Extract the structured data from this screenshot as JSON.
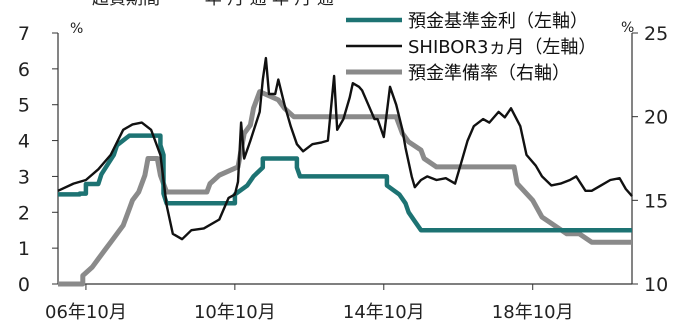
{
  "title_fragment": "超資期間  ⋯⋯ 年 月  通   年 月  通",
  "chart_data": {
    "type": "line",
    "x_ticks": [
      "06年10月",
      "10年10月",
      "14年10月",
      "18年10月"
    ],
    "left_unit": "%",
    "right_unit": "%",
    "left_axis": {
      "ticks": [
        "0",
        "1",
        "2",
        "3",
        "4",
        "5",
        "6",
        "7"
      ],
      "ylim": [
        0,
        7
      ]
    },
    "right_axis": {
      "ticks": [
        "10",
        "15",
        "20",
        "25"
      ],
      "ylim": [
        10,
        25
      ]
    },
    "grid": false,
    "legend_position": "top-right",
    "series": [
      {
        "name": "預金基準金利（左軸）",
        "axis": "left",
        "color": "#1d7373",
        "points": [
          [
            "2006-01",
            2.5
          ],
          [
            "2006-08",
            2.5
          ],
          [
            "2006-08",
            2.52
          ],
          [
            "2006-10",
            2.52
          ],
          [
            "2006-10",
            2.79
          ],
          [
            "2007-02",
            2.79
          ],
          [
            "2007-03",
            3.06
          ],
          [
            "2007-05",
            3.33
          ],
          [
            "2007-07",
            3.6
          ],
          [
            "2007-08",
            3.87
          ],
          [
            "2007-12",
            4.14
          ],
          [
            "2008-10",
            4.14
          ],
          [
            "2008-10",
            3.87
          ],
          [
            "2008-11",
            3.6
          ],
          [
            "2008-11",
            2.52
          ],
          [
            "2008-12",
            2.25
          ],
          [
            "2010-10",
            2.25
          ],
          [
            "2010-10",
            2.5
          ],
          [
            "2011-02",
            2.75
          ],
          [
            "2011-04",
            3.0
          ],
          [
            "2011-07",
            3.25
          ],
          [
            "2011-07",
            3.5
          ],
          [
            "2012-06",
            3.5
          ],
          [
            "2012-06",
            3.25
          ],
          [
            "2012-07",
            3.0
          ],
          [
            "2014-11",
            3.0
          ],
          [
            "2014-11",
            2.75
          ],
          [
            "2015-03",
            2.5
          ],
          [
            "2015-05",
            2.25
          ],
          [
            "2015-06",
            2.0
          ],
          [
            "2015-08",
            1.75
          ],
          [
            "2015-10",
            1.5
          ],
          [
            "2021-06",
            1.5
          ]
        ]
      },
      {
        "name": "SHIBOR3ヵ月（左軸）",
        "axis": "left",
        "color": "#111111",
        "points": [
          [
            "2006-01",
            2.6
          ],
          [
            "2006-06",
            2.8
          ],
          [
            "2006-10",
            2.9
          ],
          [
            "2007-02",
            3.2
          ],
          [
            "2007-06",
            3.6
          ],
          [
            "2007-10",
            4.3
          ],
          [
            "2008-01",
            4.45
          ],
          [
            "2008-04",
            4.5
          ],
          [
            "2008-07",
            4.3
          ],
          [
            "2008-10",
            3.6
          ],
          [
            "2008-12",
            2.2
          ],
          [
            "2009-02",
            1.4
          ],
          [
            "2009-05",
            1.25
          ],
          [
            "2009-08",
            1.5
          ],
          [
            "2009-12",
            1.55
          ],
          [
            "2010-05",
            1.8
          ],
          [
            "2010-08",
            2.4
          ],
          [
            "2010-10",
            2.5
          ],
          [
            "2010-11",
            2.85
          ],
          [
            "2010-12",
            4.5
          ],
          [
            "2011-01",
            3.5
          ],
          [
            "2011-03",
            4.0
          ],
          [
            "2011-06",
            4.8
          ],
          [
            "2011-07",
            5.7
          ],
          [
            "2011-08",
            6.3
          ],
          [
            "2011-09",
            5.3
          ],
          [
            "2011-11",
            5.3
          ],
          [
            "2011-12",
            5.7
          ],
          [
            "2012-02",
            5.0
          ],
          [
            "2012-04",
            4.4
          ],
          [
            "2012-06",
            3.9
          ],
          [
            "2012-08",
            3.7
          ],
          [
            "2012-11",
            3.9
          ],
          [
            "2013-02",
            3.95
          ],
          [
            "2013-04",
            4.0
          ],
          [
            "2013-06",
            5.8
          ],
          [
            "2013-07",
            4.3
          ],
          [
            "2013-09",
            4.6
          ],
          [
            "2013-11",
            5.2
          ],
          [
            "2013-12",
            5.6
          ],
          [
            "2014-02",
            5.5
          ],
          [
            "2014-03",
            5.4
          ],
          [
            "2014-05",
            5.0
          ],
          [
            "2014-07",
            4.6
          ],
          [
            "2014-08",
            4.6
          ],
          [
            "2014-10",
            4.1
          ],
          [
            "2014-12",
            5.5
          ],
          [
            "2015-02",
            5.0
          ],
          [
            "2015-04",
            4.3
          ],
          [
            "2015-05",
            3.8
          ],
          [
            "2015-07",
            3.0
          ],
          [
            "2015-08",
            2.7
          ],
          [
            "2015-10",
            2.9
          ],
          [
            "2015-12",
            3.0
          ],
          [
            "2016-03",
            2.9
          ],
          [
            "2016-06",
            2.95
          ],
          [
            "2016-09",
            2.8
          ],
          [
            "2016-11",
            3.4
          ],
          [
            "2017-01",
            4.0
          ],
          [
            "2017-03",
            4.4
          ],
          [
            "2017-06",
            4.6
          ],
          [
            "2017-08",
            4.5
          ],
          [
            "2017-11",
            4.8
          ],
          [
            "2018-01",
            4.65
          ],
          [
            "2018-03",
            4.9
          ],
          [
            "2018-06",
            4.4
          ],
          [
            "2018-08",
            3.6
          ],
          [
            "2018-11",
            3.3
          ],
          [
            "2019-01",
            3.0
          ],
          [
            "2019-04",
            2.75
          ],
          [
            "2019-07",
            2.8
          ],
          [
            "2019-10",
            2.9
          ],
          [
            "2019-12",
            3.0
          ],
          [
            "2020-03",
            2.6
          ],
          [
            "2020-05",
            2.6
          ],
          [
            "2020-08",
            2.75
          ],
          [
            "2020-11",
            2.9
          ],
          [
            "2021-02",
            2.95
          ],
          [
            "2021-04",
            2.65
          ],
          [
            "2021-06",
            2.45
          ]
        ]
      },
      {
        "name": "預金準備率（右軸）",
        "axis": "right",
        "color": "#8a8a8a",
        "points": [
          [
            "2006-01",
            10.0
          ],
          [
            "2006-09",
            10.0
          ],
          [
            "2006-09",
            10.5
          ],
          [
            "2006-12",
            11.0
          ],
          [
            "2007-02",
            11.5
          ],
          [
            "2007-04",
            12.0
          ],
          [
            "2007-06",
            12.5
          ],
          [
            "2007-08",
            13.0
          ],
          [
            "2007-10",
            13.5
          ],
          [
            "2007-12",
            14.5
          ],
          [
            "2008-01",
            15.0
          ],
          [
            "2008-03",
            15.5
          ],
          [
            "2008-05",
            16.5
          ],
          [
            "2008-06",
            17.5
          ],
          [
            "2008-09",
            17.5
          ],
          [
            "2008-10",
            16.5
          ],
          [
            "2008-12",
            15.5
          ],
          [
            "2010-01",
            15.5
          ],
          [
            "2010-02",
            16.0
          ],
          [
            "2010-05",
            16.5
          ],
          [
            "2010-11",
            17.0
          ],
          [
            "2010-12",
            18.0
          ],
          [
            "2011-01",
            19.0
          ],
          [
            "2011-03",
            19.5
          ],
          [
            "2011-04",
            20.5
          ],
          [
            "2011-06",
            21.5
          ],
          [
            "2011-12",
            21.0
          ],
          [
            "2012-02",
            20.5
          ],
          [
            "2012-05",
            20.0
          ],
          [
            "2015-02",
            20.0
          ],
          [
            "2015-04",
            19.0
          ],
          [
            "2015-06",
            18.5
          ],
          [
            "2015-10",
            18.0
          ],
          [
            "2015-11",
            17.5
          ],
          [
            "2016-03",
            17.0
          ],
          [
            "2018-04",
            17.0
          ],
          [
            "2018-05",
            16.0
          ],
          [
            "2018-10",
            15.0
          ],
          [
            "2019-01",
            14.0
          ],
          [
            "2019-05",
            13.5
          ],
          [
            "2019-09",
            13.0
          ],
          [
            "2020-01",
            13.0
          ],
          [
            "2020-05",
            12.5
          ],
          [
            "2021-06",
            12.5
          ]
        ]
      }
    ]
  }
}
